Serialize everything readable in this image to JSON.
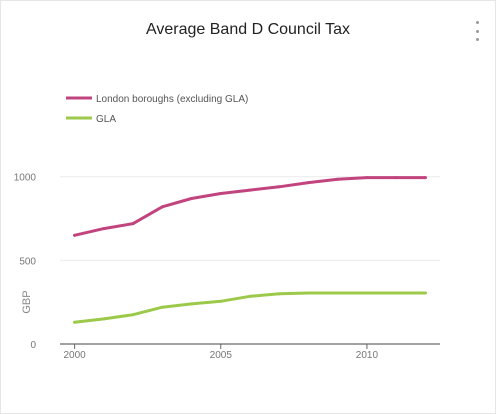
{
  "chart_data": {
    "type": "line",
    "title": "Average Band D Council Tax",
    "xlabel": "",
    "ylabel": "GBP",
    "xlim": [
      1999.5,
      2012.5
    ],
    "ylim": [
      0,
      1100
    ],
    "x_ticks": [
      2000,
      2005,
      2010
    ],
    "y_ticks": [
      0,
      500,
      1000
    ],
    "grid": true,
    "legend": "top-left",
    "x": [
      2000,
      2001,
      2002,
      2003,
      2004,
      2005,
      2006,
      2007,
      2008,
      2009,
      2010,
      2011,
      2012
    ],
    "series": [
      {
        "name": "London boroughs (excluding GLA)",
        "color": "#c2447e",
        "values": [
          650,
          690,
          720,
          820,
          870,
          900,
          920,
          940,
          965,
          985,
          995,
          995,
          995
        ]
      },
      {
        "name": "GLA",
        "color": "#9cc94a",
        "values": [
          130,
          150,
          175,
          220,
          240,
          255,
          285,
          300,
          305,
          305,
          305,
          305,
          305
        ]
      }
    ]
  },
  "menu_icon": "more-vertical-icon"
}
